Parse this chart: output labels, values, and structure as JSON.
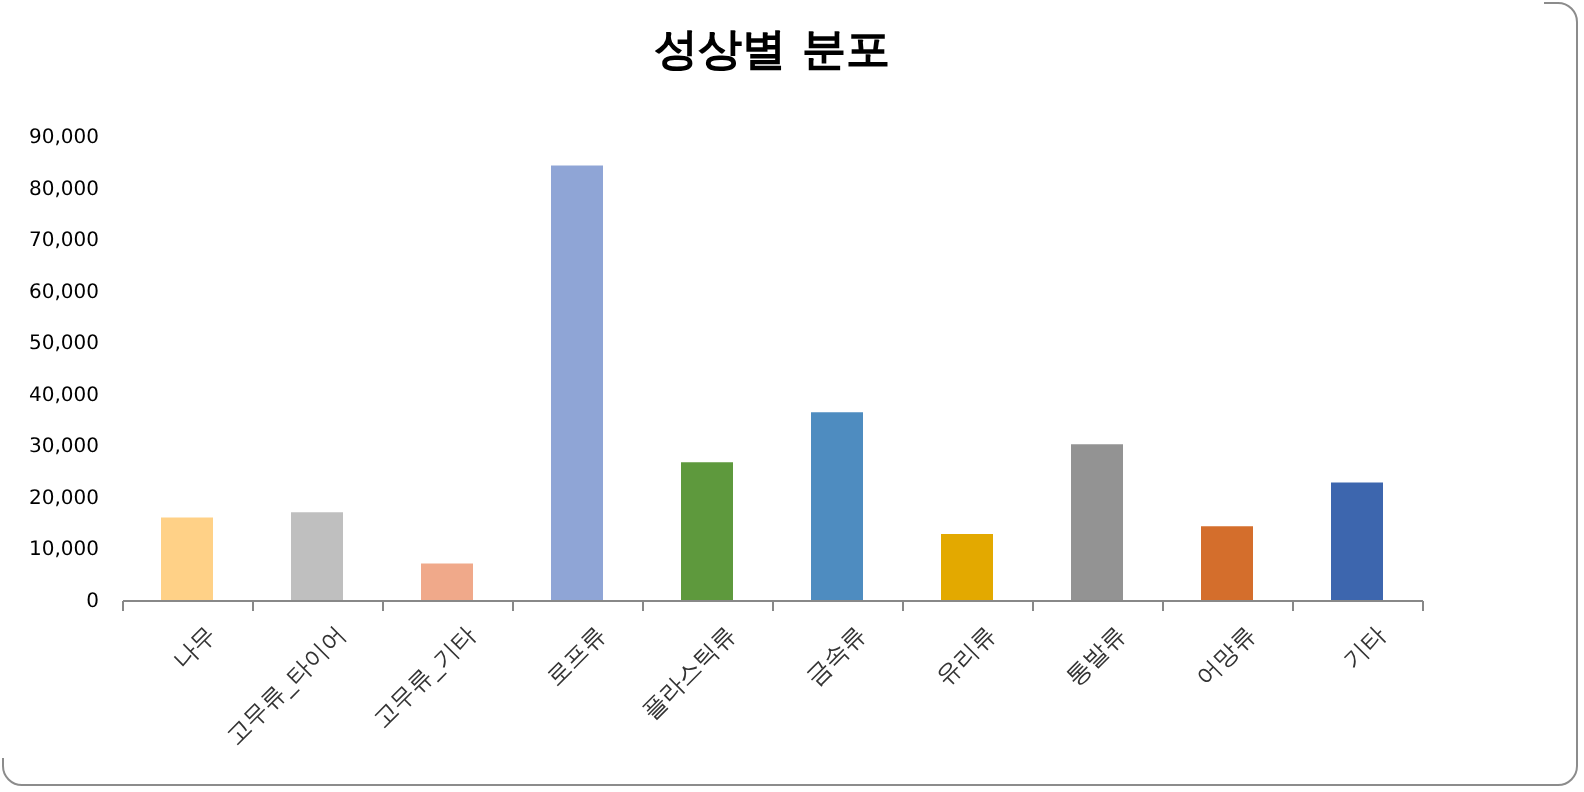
{
  "chart_data": {
    "type": "bar",
    "title": "성상별 분포",
    "categories": [
      "나무",
      "고무류_타이어",
      "고무류_기타",
      "로프류",
      "플라스틱류",
      "금속류",
      "유리류",
      "통발류",
      "어망류",
      "기타"
    ],
    "values": [
      16000,
      17000,
      7100,
      84300,
      26700,
      36400,
      12800,
      30200,
      14300,
      22800
    ],
    "colors": [
      "#ffd187",
      "#bfbfbf",
      "#f0a98a",
      "#8fa5d6",
      "#5e993d",
      "#4e8cc0",
      "#e3a900",
      "#939393",
      "#d46e2c",
      "#3d66ae"
    ],
    "ylim": [
      0,
      90000
    ],
    "yticks": [
      0,
      {
        "value": 10000,
        "label": "10,000"
      },
      {
        "value": 20000,
        "label": "20,000"
      },
      {
        "value": 30000,
        "label": "30,000"
      },
      {
        "value": 40000,
        "label": "40,000"
      },
      {
        "value": 50000,
        "label": "50,000"
      },
      {
        "value": 60000,
        "label": "60,000"
      },
      {
        "value": 70000,
        "label": "70,000"
      },
      {
        "value": 80000,
        "label": "80,000"
      },
      {
        "value": 90000,
        "label": "90,000"
      }
    ],
    "grid": false,
    "legend": false
  }
}
